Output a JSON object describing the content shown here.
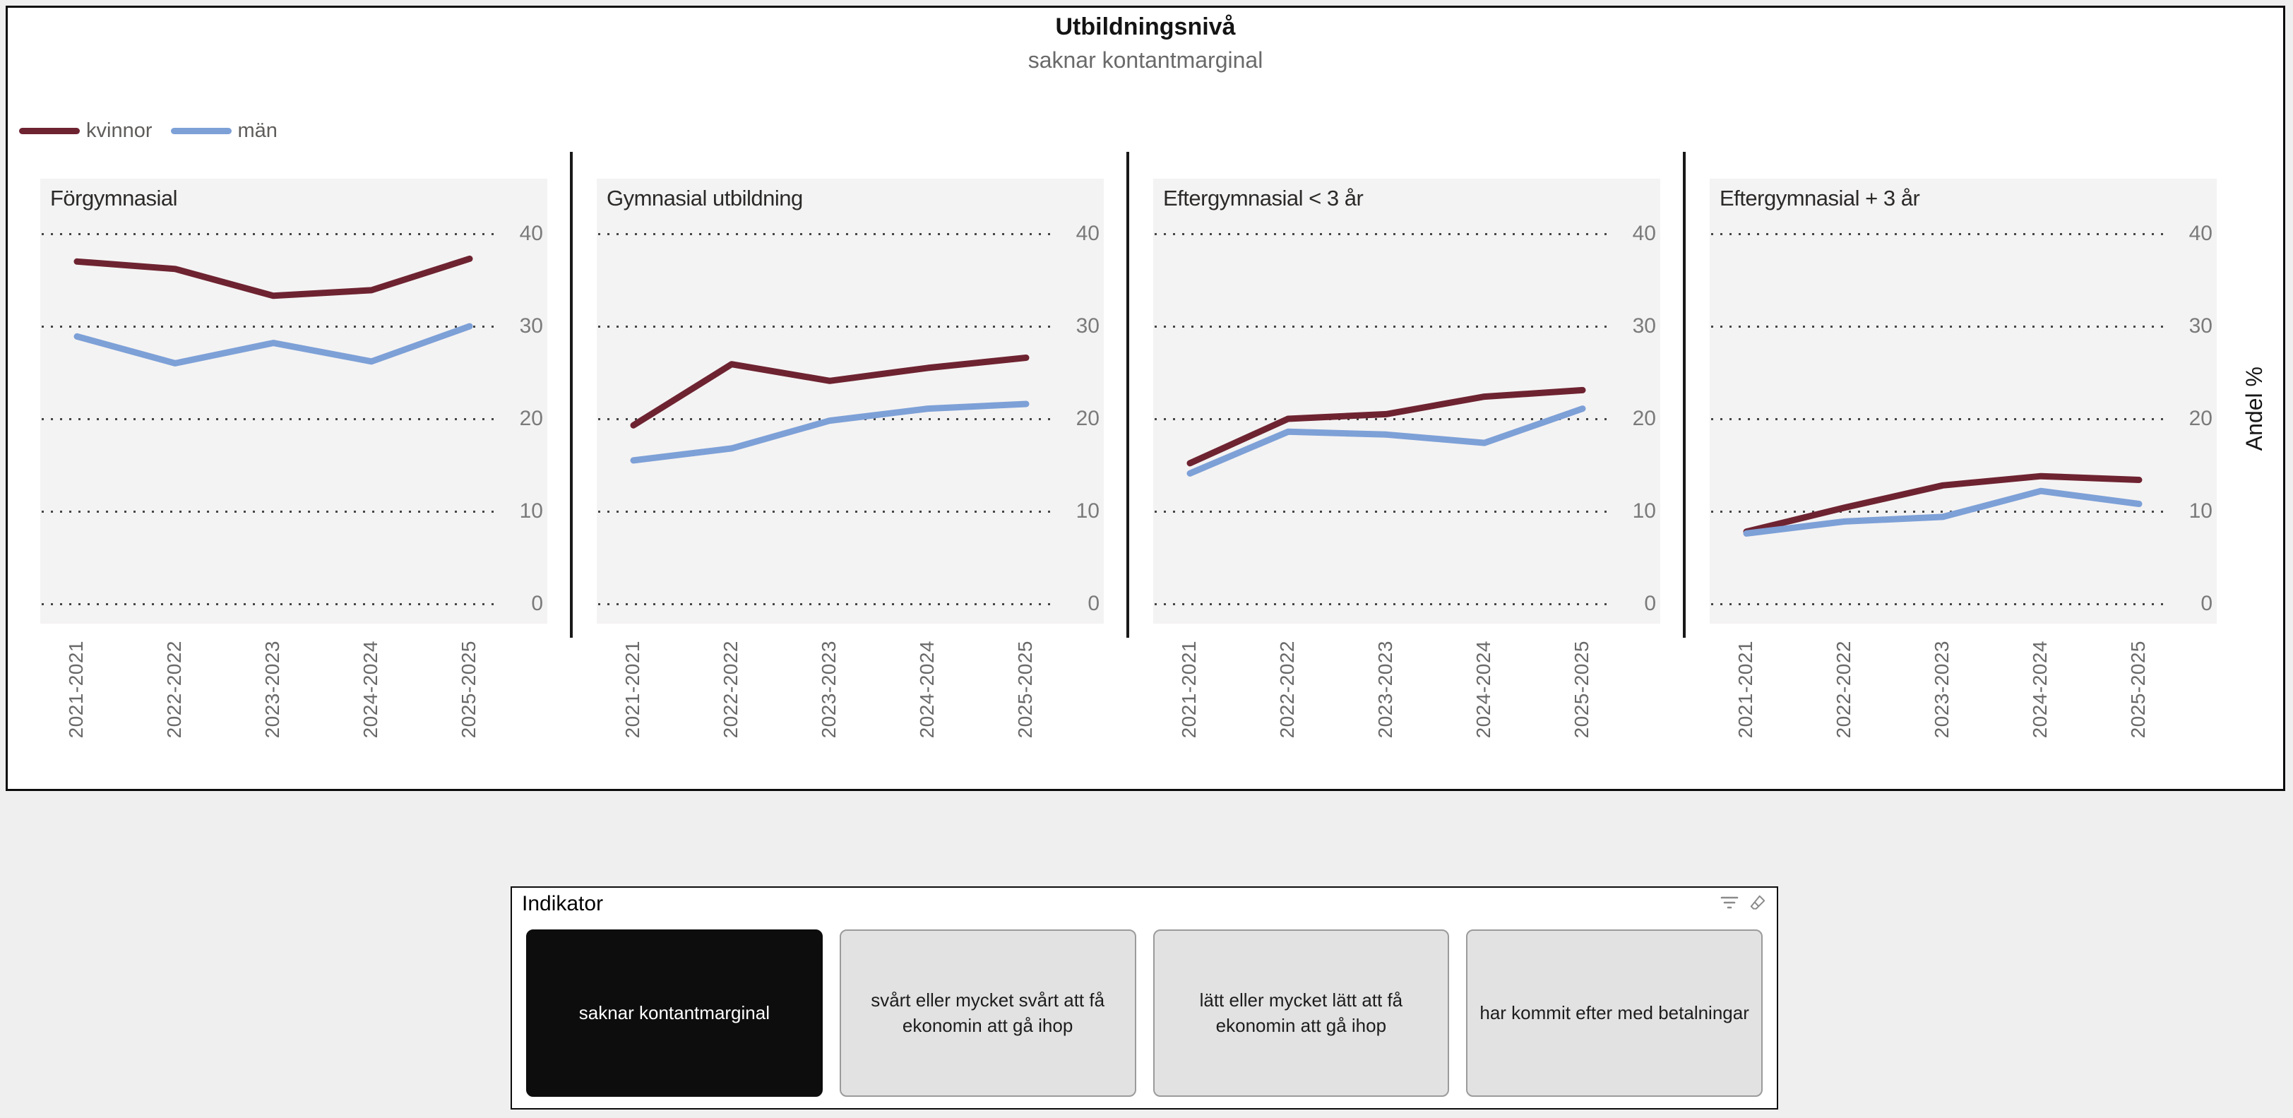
{
  "chart": {
    "title": "Utbildningsnivå",
    "subtitle": "saknar kontantmarginal",
    "y_axis_label": "Andel %",
    "legend": [
      {
        "label": "kvinnor",
        "color": "#6e2331"
      },
      {
        "label": "män",
        "color": "#7da0d7"
      }
    ]
  },
  "chart_data": {
    "type": "line",
    "layout": "4 small multiples, shared y axis 0-40, dotted horizontal gridlines, legend top-left",
    "categories": [
      "2021-2021",
      "2022-2022",
      "2023-2023",
      "2024-2024",
      "2025-2025"
    ],
    "y_ticks": [
      0,
      10,
      20,
      30,
      40
    ],
    "ylim": [
      0,
      40
    ],
    "ylabel": "Andel %",
    "panels": [
      {
        "title": "Förgymnasial",
        "series": [
          {
            "name": "kvinnor",
            "values": [
              37.0,
              36.2,
              33.3,
              33.9,
              37.3
            ]
          },
          {
            "name": "män",
            "values": [
              28.9,
              26.0,
              28.2,
              26.2,
              30.0
            ]
          }
        ]
      },
      {
        "title": "Gymnasial utbildning",
        "series": [
          {
            "name": "kvinnor",
            "values": [
              19.3,
              25.9,
              24.1,
              25.5,
              26.6
            ]
          },
          {
            "name": "män",
            "values": [
              15.5,
              16.8,
              19.8,
              21.1,
              21.6
            ]
          }
        ]
      },
      {
        "title": "Eftergymnasial < 3 år",
        "series": [
          {
            "name": "kvinnor",
            "values": [
              15.2,
              20.0,
              20.5,
              22.4,
              23.1
            ]
          },
          {
            "name": "män",
            "values": [
              14.1,
              18.6,
              18.3,
              17.4,
              21.1
            ]
          }
        ]
      },
      {
        "title": "Eftergymnasial + 3 år",
        "series": [
          {
            "name": "kvinnor",
            "values": [
              7.8,
              10.4,
              12.8,
              13.8,
              13.4
            ]
          },
          {
            "name": "män",
            "values": [
              7.6,
              8.9,
              9.4,
              12.2,
              10.8
            ]
          }
        ]
      }
    ]
  },
  "slicer": {
    "title": "Indikator",
    "options": [
      {
        "label": "saknar kontantmarginal",
        "selected": true
      },
      {
        "label": "svårt eller mycket svårt att få ekonomin att gå ihop",
        "selected": false
      },
      {
        "label": "lätt eller mycket lätt att få ekonomin att gå ihop",
        "selected": false
      },
      {
        "label": "har kommit efter med betalningar",
        "selected": false
      }
    ]
  },
  "colors": {
    "kvinnor_line": "#6e2331",
    "man_line": "#7da0d7",
    "panel_background": "#f4f3f3",
    "page_background": "#f0efef",
    "card_background": "#ffffff",
    "selected_button": "#0d0d0d",
    "unselected_button": "#e2e2e2"
  }
}
